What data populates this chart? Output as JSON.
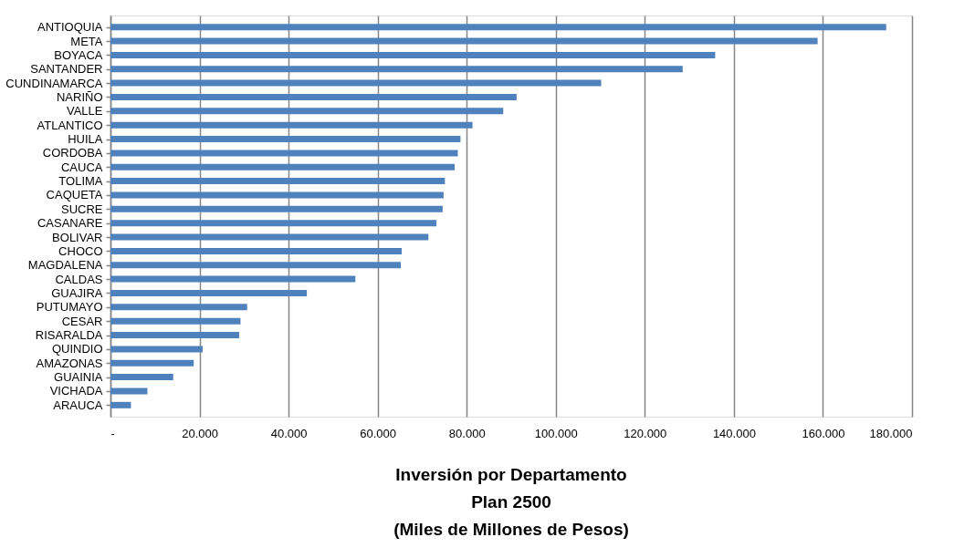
{
  "chart_data": {
    "type": "bar",
    "orientation": "horizontal",
    "title": "Inversión por Departamento\nPlan 2500\n(Miles de Millones de Pesos)",
    "categories": [
      "ANTIOQUIA",
      "META",
      "BOYACA",
      "SANTANDER",
      "CUNDINAMARCA",
      "NARIÑO",
      "VALLE",
      "ATLANTICO",
      "HUILA",
      "CORDOBA",
      "CAUCA",
      "TOLIMA",
      "CAQUETA",
      "SUCRE",
      "CASANARE",
      "BOLIVAR",
      "CHOCO",
      "MAGDALENA",
      "CALDAS",
      "GUAJIRA",
      "PUTUMAYO",
      "CESAR",
      "RISARALDA",
      "QUINDIO",
      "AMAZONAS",
      "GUAINIA",
      "VICHADA",
      "ARAUCA"
    ],
    "values": [
      174200,
      158800,
      135800,
      128500,
      110200,
      91200,
      88200,
      81300,
      78600,
      78000,
      77300,
      75100,
      74800,
      74600,
      73200,
      71400,
      65400,
      65200,
      55000,
      44100,
      30700,
      29200,
      28900,
      20700,
      18700,
      14100,
      8300,
      4600
    ],
    "color": "#4f81bd",
    "xlim": [
      0,
      180000
    ],
    "xticks": [
      {
        "value": 0,
        "label": "-"
      },
      {
        "value": 20000,
        "label": "20.000"
      },
      {
        "value": 40000,
        "label": "40.000"
      },
      {
        "value": 60000,
        "label": "60.000"
      },
      {
        "value": 80000,
        "label": "80.000"
      },
      {
        "value": 100000,
        "label": "100.000"
      },
      {
        "value": 120000,
        "label": "120.000"
      },
      {
        "value": 140000,
        "label": "140.000"
      },
      {
        "value": 160000,
        "label": "160.000"
      },
      {
        "value": 180000,
        "label": "180.000"
      }
    ],
    "grid": "x"
  }
}
